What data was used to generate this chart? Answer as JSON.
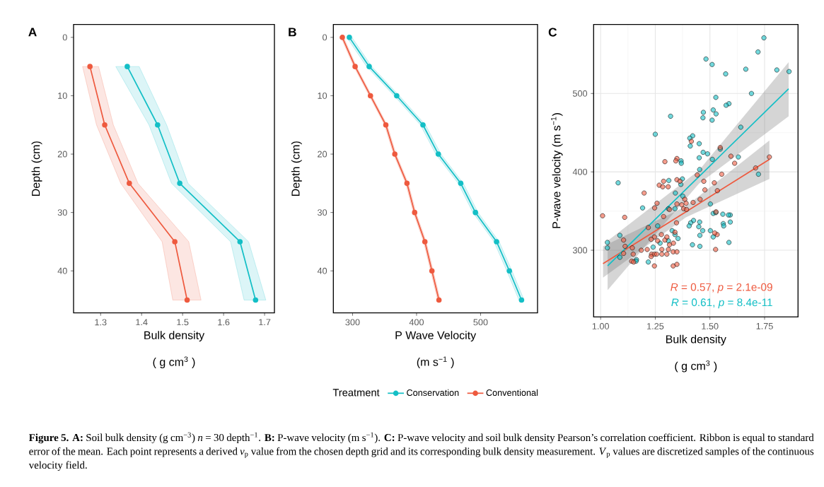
{
  "chart_data": [
    {
      "type": "line",
      "title": "A",
      "xlabel": "Bulk density",
      "ylabel": "Depth (cm)",
      "annotations": [
        "( g cm$^{3}$ )"
      ],
      "orientation": "horizontal",
      "x": [
        5,
        15,
        25,
        35,
        45
      ],
      "series": [
        {
          "color": "#14bfc6",
          "values": [
            1.365,
            1.439,
            1.493,
            1.64,
            1.678
          ],
          "lower": [
            1.337,
            1.418,
            1.473,
            1.617,
            1.65
          ],
          "upper": [
            1.394,
            1.461,
            1.513,
            1.661,
            1.703
          ]
        },
        {
          "color": "#ee5a3f",
          "values": [
            1.274,
            1.31,
            1.37,
            1.481,
            1.511
          ],
          "lower": [
            1.256,
            1.29,
            1.349,
            1.45,
            1.476
          ],
          "upper": [
            1.295,
            1.331,
            1.391,
            1.515,
            1.545
          ]
        }
      ],
      "xlim": [
        1.234,
        1.724
      ],
      "xticks": [
        1.3,
        1.4,
        1.5,
        1.6,
        1.7
      ],
      "ylim": [
        47.2,
        -2.2
      ],
      "yticks": [
        0,
        10,
        20,
        30,
        40
      ],
      "marker": "circle",
      "line_style": "solid"
    },
    {
      "type": "line",
      "title": "B",
      "xlabel": "P Wave Velocity",
      "ylabel": "Depth (cm)",
      "legend_title": "Treatment",
      "legend": "bottom",
      "annotations": [
        "(m s$^{−1}$ )",
        "**Figure 5. A:** Soil bulk density (g cm$^{−3}$) *n* = 30 depth$^{−1}$. **B:** P-wave velocity (m s$^{−1}$). **C:** P-wave velocity and soil bulk density Pearson’s correlation coefficient. Ribbon is equal to standard error of the mean. Each point represents a derived *v*$_{p}$ value from the chosen depth grid and its corresponding bulk density measurement. *V*$_{p}$ values are discretized samples of the continuous velocity field."
      ],
      "orientation": "horizontal",
      "x": [
        0,
        5,
        10,
        15,
        20,
        25,
        30,
        35,
        40,
        45
      ],
      "series": [
        {
          "name": "Conservation",
          "color": "#14bfc6",
          "values": [
            295,
            326,
            369,
            410,
            434,
            469,
            492,
            525,
            545,
            564
          ],
          "lower": [
            291,
            322,
            365,
            406,
            430,
            465,
            488,
            521,
            541,
            560
          ],
          "upper": [
            299,
            330,
            373,
            414,
            438,
            473,
            496,
            529,
            549,
            568
          ]
        },
        {
          "name": "Conventional",
          "color": "#ee5a3f",
          "values": [
            284,
            304,
            328,
            352,
            366,
            385,
            397,
            413,
            424,
            435
          ],
          "lower": [
            282,
            302,
            326,
            350,
            364,
            383,
            395,
            411,
            422,
            433
          ],
          "upper": [
            286,
            306,
            330,
            354,
            368,
            387,
            399,
            415,
            426,
            437
          ]
        }
      ],
      "xlim": [
        270,
        589
      ],
      "xticks": [
        300,
        400,
        500
      ],
      "ylim": [
        47.2,
        -2.2
      ],
      "yticks": [
        0,
        10,
        20,
        30,
        40
      ],
      "marker": "circle",
      "line_style": "solid"
    },
    {
      "type": "scatter",
      "title": "C",
      "xlabel": "Bulk density",
      "ylabel": "P-wave velocity (m s$^{−1}$)",
      "annotations": [
        "( g cm$^{3}$ )",
        "*R* = 0.57, *p* = 2.1e-09",
        "*R* = 0.61, *p* = 8.4e-11"
      ],
      "series": [
        {
          "color": "#14bfc6",
          "x": [
            1.747,
            1.72,
            1.482,
            1.51,
            1.862,
            1.806,
            1.664,
            1.572,
            1.69,
            1.527,
            1.587,
            1.574,
            1.32,
            1.47,
            1.468,
            1.515,
            1.528,
            1.51,
            1.25,
            1.641,
            1.421,
            1.408,
            1.451,
            1.41,
            1.469,
            1.489,
            1.451,
            1.63,
            1.511,
            1.368,
            1.369,
            1.547,
            1.722,
            1.453,
            1.08,
            1.312,
            1.367,
            1.374,
            1.342,
            1.192,
            1.502,
            1.376,
            1.31,
            1.34,
            1.515,
            1.559,
            1.593,
            1.585,
            1.527,
            1.453,
            1.425,
            1.412,
            1.405,
            1.449,
            1.467,
            1.502,
            1.561,
            1.563,
            1.593,
            1.454,
            1.515,
            1.327,
            1.34,
            1.354,
            1.42,
            1.454,
            1.587,
            1.088,
            1.031,
            1.031,
            1.088,
            1.164,
            1.162,
            1.218,
            1.24,
            1.272,
            1.31,
            1.261
          ],
          "values": [
            571,
            553,
            544,
            537,
            528,
            530,
            531,
            525,
            500,
            495,
            487,
            485,
            471,
            476,
            469,
            479,
            474,
            466,
            448,
            457,
            446,
            443,
            436,
            433,
            425,
            423,
            418,
            419,
            416,
            414,
            411,
            429,
            397,
            403,
            386,
            389,
            384,
            391,
            373,
            354,
            359,
            369,
            353,
            353,
            347,
            346,
            345,
            345,
            348,
            336,
            338,
            335,
            331,
            330,
            325,
            325,
            334,
            331,
            336,
            319,
            317,
            325,
            320,
            315,
            307,
            305,
            310,
            319,
            310,
            303,
            291,
            288,
            286,
            285,
            304,
            309,
            312,
            331
          ]
        },
        {
          "color": "#ee5a3f",
          "x": [
            1.415,
            1.547,
            1.596,
            1.772,
            1.613,
            1.349,
            1.344,
            1.294,
            1.709,
            1.442,
            1.554,
            1.349,
            1.288,
            1.363,
            1.52,
            1.472,
            1.268,
            1.284,
            1.309,
            1.477,
            1.534,
            1.199,
            1.385,
            1.455,
            1.423,
            1.258,
            1.349,
            1.391,
            1.247,
            1.315,
            1.371,
            1.009,
            1.11,
            1.38,
            1.393,
            1.528,
            1.288,
            1.347,
            1.218,
            1.278,
            1.294,
            1.303,
            1.34,
            1.246,
            1.231,
            1.261,
            1.315,
            1.333,
            1.105,
            1.112,
            1.145,
            1.186,
            1.213,
            1.28,
            1.31,
            1.526,
            1.533,
            1.522,
            1.233,
            1.246,
            1.231,
            1.256,
            1.28,
            1.303,
            1.332,
            1.349,
            1.149,
            1.142,
            1.105,
            1.332,
            1.349,
            1.246,
            1.151
          ],
          "values": [
            439,
            431,
            420,
            419,
            411,
            417,
            414,
            413,
            405,
            396,
            397,
            390,
            388,
            388,
            386,
            388,
            383,
            381,
            381,
            377,
            376,
            373,
            365,
            365,
            361,
            360,
            359,
            360,
            354,
            352,
            358,
            344,
            342,
            353,
            352,
            349,
            343,
            335,
            329,
            320,
            313,
            317,
            323,
            317,
            314,
            312,
            307,
            309,
            313,
            305,
            303,
            300,
            301,
            301,
            301,
            301,
            320,
            322,
            295,
            295,
            292,
            295,
            295,
            295,
            298,
            298,
            295,
            286,
            296,
            280,
            282,
            280,
            285
          ]
        },
        {
          "type": "line",
          "marker": "none",
          "color": "#ee5a3f",
          "x": [
            1.011,
            1.39,
            1.772
          ],
          "values": [
            283,
            349,
            416
          ],
          "lower": [
            265,
            342,
            391
          ],
          "upper": [
            305,
            356,
            440
          ]
        },
        {
          "type": "line",
          "marker": "none",
          "color": "#14bfc6",
          "x": [
            1.032,
            1.45,
            1.86
          ],
          "values": [
            280,
            394,
            506
          ],
          "lower": [
            249,
            385,
            471
          ],
          "upper": [
            312,
            402,
            540
          ]
        }
      ],
      "xlim": [
        0.968,
        1.903
      ],
      "xticks": [
        {
          "value": 1,
          "label": "1.00"
        },
        1.25,
        {
          "value": 1.5,
          "label": "1.50"
        },
        1.75
      ],
      "ylim": [
        215,
        588
      ],
      "yticks": [
        300,
        400,
        500
      ],
      "grid": true,
      "marker": "circle"
    }
  ]
}
